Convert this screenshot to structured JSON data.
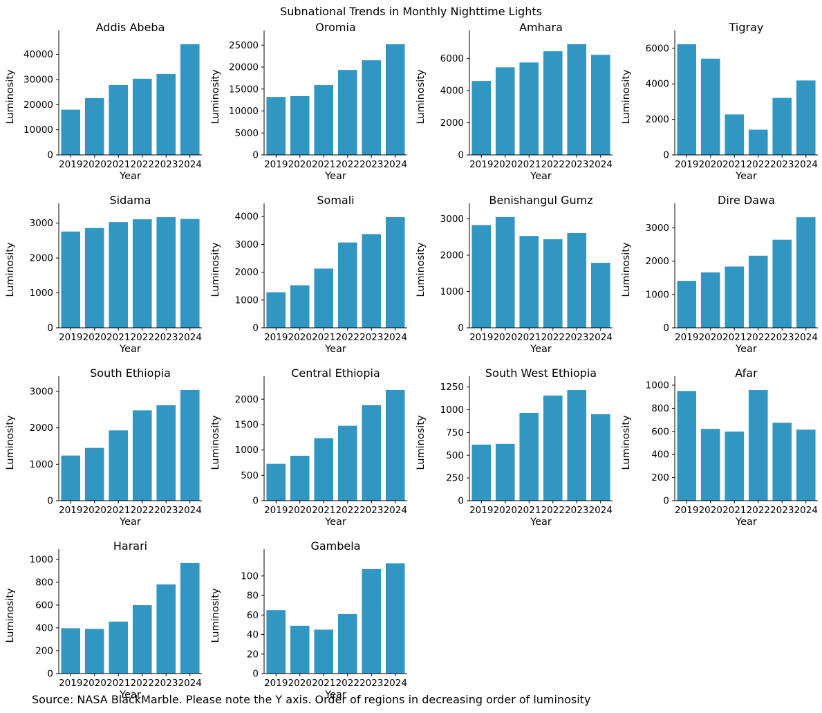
{
  "title": "Subnational Trends in Monthly Nighttime Lights",
  "footer": "Source: NASA BlackMarble. Please note the Y axis. Order of regions in decreasing order of luminosity",
  "colors": {
    "bar": "#3196c2",
    "axis": "#000000",
    "text": "#000000",
    "background": "#ffffff"
  },
  "chart_data": [
    {
      "type": "bar",
      "title": "Addis Abeba",
      "xlabel": "Year",
      "ylabel": "Luminosity",
      "categories": [
        "2019",
        "2020",
        "2021",
        "2022",
        "2023",
        "2024"
      ],
      "values": [
        18000,
        22600,
        27800,
        30300,
        32200,
        44000
      ],
      "yticks": [
        0,
        10000,
        20000,
        30000,
        40000
      ],
      "ylim": [
        0,
        46200
      ],
      "grid": false,
      "legend": "none"
    },
    {
      "type": "bar",
      "title": "Oromia",
      "xlabel": "Year",
      "ylabel": "Luminosity",
      "categories": [
        "2019",
        "2020",
        "2021",
        "2022",
        "2023",
        "2024"
      ],
      "values": [
        13200,
        13400,
        15900,
        19350,
        21550,
        25200
      ],
      "yticks": [
        0,
        5000,
        10000,
        15000,
        20000,
        25000
      ],
      "ylim": [
        0,
        26460
      ],
      "grid": false,
      "legend": "none"
    },
    {
      "type": "bar",
      "title": "Amhara",
      "xlabel": "Year",
      "ylabel": "Luminosity",
      "categories": [
        "2019",
        "2020",
        "2021",
        "2022",
        "2023",
        "2024"
      ],
      "values": [
        4600,
        5450,
        5750,
        6450,
        6890,
        6230
      ],
      "yticks": [
        0,
        2000,
        4000,
        6000
      ],
      "ylim": [
        0,
        7230
      ],
      "grid": false,
      "legend": "none"
    },
    {
      "type": "bar",
      "title": "Tigray",
      "xlabel": "Year",
      "ylabel": "Luminosity",
      "categories": [
        "2019",
        "2020",
        "2021",
        "2022",
        "2023",
        "2024"
      ],
      "values": [
        6230,
        5420,
        2280,
        1420,
        3210,
        4190
      ],
      "yticks": [
        0,
        2000,
        4000,
        6000
      ],
      "ylim": [
        0,
        6540
      ],
      "grid": false,
      "legend": "none"
    },
    {
      "type": "bar",
      "title": "Sidama",
      "xlabel": "Year",
      "ylabel": "Luminosity",
      "categories": [
        "2019",
        "2020",
        "2021",
        "2022",
        "2023",
        "2024"
      ],
      "values": [
        2760,
        2860,
        3030,
        3110,
        3170,
        3120
      ],
      "yticks": [
        0,
        1000,
        2000,
        3000
      ],
      "ylim": [
        0,
        3330
      ],
      "grid": false,
      "legend": "none"
    },
    {
      "type": "bar",
      "title": "Somali",
      "xlabel": "Year",
      "ylabel": "Luminosity",
      "categories": [
        "2019",
        "2020",
        "2021",
        "2022",
        "2023",
        "2024"
      ],
      "values": [
        1280,
        1530,
        2130,
        3070,
        3370,
        3980
      ],
      "yticks": [
        0,
        1000,
        2000,
        3000,
        4000
      ],
      "ylim": [
        0,
        4180
      ],
      "grid": false,
      "legend": "none"
    },
    {
      "type": "bar",
      "title": "Benishangul Gumz",
      "xlabel": "Year",
      "ylabel": "Luminosity",
      "categories": [
        "2019",
        "2020",
        "2021",
        "2022",
        "2023",
        "2024"
      ],
      "values": [
        2830,
        3050,
        2530,
        2440,
        2610,
        1790
      ],
      "yticks": [
        0,
        1000,
        2000,
        3000
      ],
      "ylim": [
        0,
        3200
      ],
      "grid": false,
      "legend": "none"
    },
    {
      "type": "bar",
      "title": "Dire Dawa",
      "xlabel": "Year",
      "ylabel": "Luminosity",
      "categories": [
        "2019",
        "2020",
        "2021",
        "2022",
        "2023",
        "2024"
      ],
      "values": [
        1410,
        1665,
        1840,
        2165,
        2645,
        3320
      ],
      "yticks": [
        0,
        1000,
        2000,
        3000
      ],
      "ylim": [
        0,
        3490
      ],
      "grid": false,
      "legend": "none"
    },
    {
      "type": "bar",
      "title": "South Ethiopia",
      "xlabel": "Year",
      "ylabel": "Luminosity",
      "categories": [
        "2019",
        "2020",
        "2021",
        "2022",
        "2023",
        "2024"
      ],
      "values": [
        1240,
        1450,
        1930,
        2480,
        2620,
        3040
      ],
      "yticks": [
        0,
        1000,
        2000,
        3000
      ],
      "ylim": [
        0,
        3190
      ],
      "grid": false,
      "legend": "none"
    },
    {
      "type": "bar",
      "title": "Central Ethiopia",
      "xlabel": "Year",
      "ylabel": "Luminosity",
      "categories": [
        "2019",
        "2020",
        "2021",
        "2022",
        "2023",
        "2024"
      ],
      "values": [
        727,
        886,
        1232,
        1477,
        1882,
        2182
      ],
      "yticks": [
        0,
        500,
        1000,
        1500,
        2000
      ],
      "ylim": [
        0,
        2290
      ],
      "grid": false,
      "legend": "none"
    },
    {
      "type": "bar",
      "title": "South West Ethiopia",
      "xlabel": "Year",
      "ylabel": "Luminosity",
      "categories": [
        "2019",
        "2020",
        "2021",
        "2022",
        "2023",
        "2024"
      ],
      "values": [
        617,
        625,
        966,
        1157,
        1217,
        951
      ],
      "yticks": [
        0,
        250,
        500,
        750,
        1000,
        1250
      ],
      "ylim": [
        0,
        1278
      ],
      "grid": false,
      "legend": "none"
    },
    {
      "type": "bar",
      "title": "Afar",
      "xlabel": "Year",
      "ylabel": "Luminosity",
      "categories": [
        "2019",
        "2020",
        "2021",
        "2022",
        "2023",
        "2024"
      ],
      "values": [
        950,
        622,
        598,
        958,
        675,
        615
      ],
      "yticks": [
        0,
        200,
        400,
        600,
        800,
        1000
      ],
      "ylim": [
        0,
        1006
      ],
      "grid": false,
      "legend": "none"
    },
    {
      "type": "bar",
      "title": "Harari",
      "xlabel": "Year",
      "ylabel": "Luminosity",
      "categories": [
        "2019",
        "2020",
        "2021",
        "2022",
        "2023",
        "2024"
      ],
      "values": [
        397,
        391,
        455,
        599,
        780,
        969
      ],
      "yticks": [
        0,
        200,
        400,
        600,
        800,
        1000
      ],
      "ylim": [
        0,
        1017
      ],
      "grid": false,
      "legend": "none"
    },
    {
      "type": "bar",
      "title": "Gambela",
      "xlabel": "Year",
      "ylabel": "Luminosity",
      "categories": [
        "2019",
        "2020",
        "2021",
        "2022",
        "2023",
        "2024"
      ],
      "values": [
        65,
        49,
        45,
        61,
        107,
        113
      ],
      "yticks": [
        0,
        20,
        40,
        60,
        80,
        100
      ],
      "ylim": [
        0,
        119
      ],
      "grid": false,
      "legend": "none"
    }
  ]
}
